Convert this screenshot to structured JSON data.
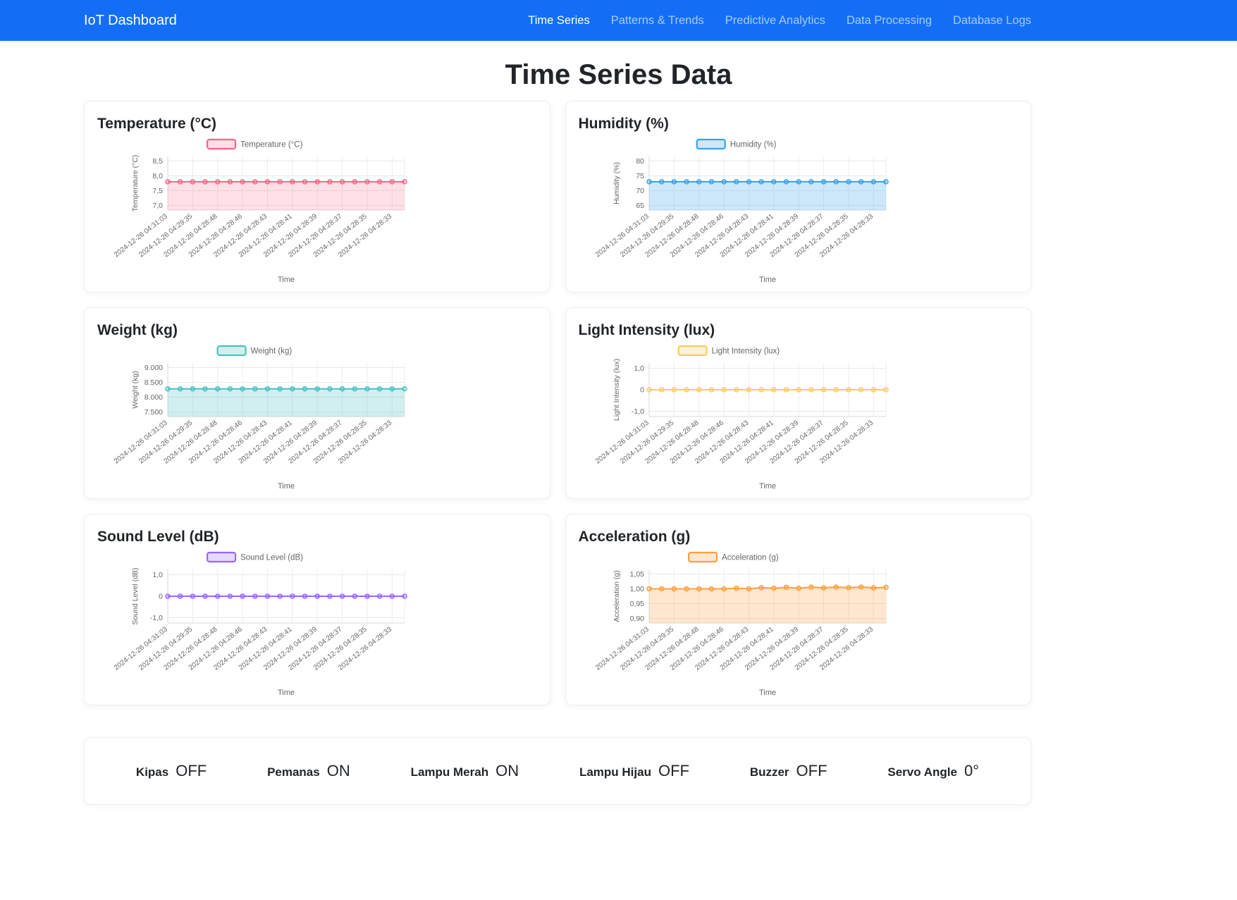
{
  "navbar": {
    "brand": "IoT Dashboard",
    "bg_color": "#146ef5",
    "links": [
      {
        "label": "Time Series",
        "active": true
      },
      {
        "label": "Patterns & Trends",
        "active": false
      },
      {
        "label": "Predictive Analytics",
        "active": false
      },
      {
        "label": "Data Processing",
        "active": false
      },
      {
        "label": "Database Logs",
        "active": false
      }
    ]
  },
  "page_title": "Time Series Data",
  "chart_data": [
    {
      "type": "line",
      "title": "Temperature (°C)",
      "legend": "Temperature (°C)",
      "ylabel": "Temperature (°C)",
      "xlabel": "Time",
      "color": "#ff6384",
      "fill_color": "rgba(255,99,132,0.2)",
      "fill": true,
      "ylim": [
        6.85,
        8.65
      ],
      "yticks": [
        {
          "v": 8.5,
          "label": "8,5"
        },
        {
          "v": 8.0,
          "label": "8,0"
        },
        {
          "v": 7.5,
          "label": "7,5"
        },
        {
          "v": 7.0,
          "label": "7,0"
        }
      ],
      "x_labels": [
        "2024-12-26 04:31:03",
        "2024-12-26 04:29:35",
        "2024-12-26 04:28:48",
        "2024-12-26 04:28:46",
        "2024-12-26 04:28:43",
        "2024-12-26 04:28:41",
        "2024-12-26 04:28:39",
        "2024-12-26 04:28:37",
        "2024-12-26 04:28:35",
        "2024-12-26 04:28:33"
      ],
      "label_every": 2,
      "values": [
        7.8,
        7.8,
        7.8,
        7.8,
        7.8,
        7.8,
        7.8,
        7.8,
        7.8,
        7.8,
        7.8,
        7.8,
        7.8,
        7.8,
        7.8,
        7.8,
        7.8,
        7.8,
        7.8,
        7.8
      ]
    },
    {
      "type": "line",
      "title": "Humidity (%)",
      "legend": "Humidity (%)",
      "ylabel": "Humidity (%)",
      "xlabel": "Time",
      "color": "#36a2eb",
      "fill_color": "rgba(54,162,235,0.25)",
      "fill": true,
      "ylim": [
        63.5,
        81.5
      ],
      "yticks": [
        {
          "v": 80,
          "label": "80"
        },
        {
          "v": 75,
          "label": "75"
        },
        {
          "v": 70,
          "label": "70"
        },
        {
          "v": 65,
          "label": "65"
        }
      ],
      "x_labels": [
        "2024-12-26 04:31:03",
        "2024-12-26 04:29:35",
        "2024-12-26 04:28:48",
        "2024-12-26 04:28:46",
        "2024-12-26 04:28:43",
        "2024-12-26 04:28:41",
        "2024-12-26 04:28:39",
        "2024-12-26 04:28:37",
        "2024-12-26 04:28:35",
        "2024-12-26 04:28:33"
      ],
      "label_every": 2,
      "values": [
        73,
        73,
        73,
        73,
        73,
        73,
        73,
        73,
        73,
        73,
        73,
        73,
        73,
        73,
        73,
        73,
        73,
        73,
        73,
        73
      ]
    },
    {
      "type": "line",
      "title": "Weight (kg)",
      "legend": "Weight (kg)",
      "ylabel": "Weight (kg)",
      "xlabel": "Time",
      "color": "#4bc0c0",
      "fill_color": "rgba(75,192,192,0.25)",
      "fill": true,
      "ylim": [
        7350,
        9150
      ],
      "yticks": [
        {
          "v": 9000,
          "label": "9.000"
        },
        {
          "v": 8500,
          "label": "8.500"
        },
        {
          "v": 8000,
          "label": "8.000"
        },
        {
          "v": 7500,
          "label": "7.500"
        }
      ],
      "x_labels": [
        "2024-12-26 04:31:03",
        "2024-12-26 04:29:35",
        "2024-12-26 04:28:48",
        "2024-12-26 04:28:46",
        "2024-12-26 04:28:43",
        "2024-12-26 04:28:41",
        "2024-12-26 04:28:39",
        "2024-12-26 04:28:37",
        "2024-12-26 04:28:35",
        "2024-12-26 04:28:33"
      ],
      "label_every": 2,
      "values": [
        8280,
        8280,
        8280,
        8280,
        8280,
        8280,
        8280,
        8280,
        8280,
        8280,
        8280,
        8280,
        8280,
        8280,
        8280,
        8280,
        8280,
        8280,
        8280,
        8280
      ]
    },
    {
      "type": "line",
      "title": "Light Intensity (lux)",
      "legend": "Light Intensity (lux)",
      "ylabel": "Light Intensity (lux)",
      "xlabel": "Time",
      "color": "#ffcd56",
      "fill_color": "rgba(255,205,86,0.25)",
      "fill": false,
      "ylim": [
        -1.25,
        1.25
      ],
      "yticks": [
        {
          "v": 1,
          "label": "1,0"
        },
        {
          "v": 0,
          "label": "0"
        },
        {
          "v": -1,
          "label": "-1,0"
        }
      ],
      "x_labels": [
        "2024-12-26 04:31:03",
        "2024-12-26 04:29:35",
        "2024-12-26 04:28:48",
        "2024-12-26 04:28:46",
        "2024-12-26 04:28:43",
        "2024-12-26 04:28:41",
        "2024-12-26 04:28:39",
        "2024-12-26 04:28:37",
        "2024-12-26 04:28:35",
        "2024-12-26 04:28:33"
      ],
      "label_every": 2,
      "values": [
        0,
        0,
        0,
        0,
        0,
        0,
        0,
        0,
        0,
        0,
        0,
        0,
        0,
        0,
        0,
        0,
        0,
        0,
        0,
        0
      ]
    },
    {
      "type": "line",
      "title": "Sound Level (dB)",
      "legend": "Sound Level (dB)",
      "ylabel": "Sound Level (dB)",
      "xlabel": "Time",
      "color": "#9966ff",
      "fill_color": "rgba(153,102,255,0.25)",
      "fill": false,
      "ylim": [
        -1.25,
        1.25
      ],
      "yticks": [
        {
          "v": 1,
          "label": "1,0"
        },
        {
          "v": 0,
          "label": "0"
        },
        {
          "v": -1,
          "label": "-1,0"
        }
      ],
      "x_labels": [
        "2024-12-26 04:31:03",
        "2024-12-26 04:29:35",
        "2024-12-26 04:28:48",
        "2024-12-26 04:28:46",
        "2024-12-26 04:28:43",
        "2024-12-26 04:28:41",
        "2024-12-26 04:28:39",
        "2024-12-26 04:28:37",
        "2024-12-26 04:28:35",
        "2024-12-26 04:28:33"
      ],
      "label_every": 2,
      "values": [
        0,
        0,
        0,
        0,
        0,
        0,
        0,
        0,
        0,
        0,
        0,
        0,
        0,
        0,
        0,
        0,
        0,
        0,
        0,
        0
      ]
    },
    {
      "type": "line",
      "title": "Acceleration (g)",
      "legend": "Acceleration (g)",
      "ylabel": "Acceleration (g)",
      "xlabel": "Time",
      "color": "#ff9f40",
      "fill_color": "rgba(255,159,64,0.25)",
      "fill": true,
      "ylim": [
        0.885,
        1.065
      ],
      "yticks": [
        {
          "v": 1.05,
          "label": "1,05"
        },
        {
          "v": 1.0,
          "label": "1,00"
        },
        {
          "v": 0.95,
          "label": "0,95"
        },
        {
          "v": 0.9,
          "label": "0,90"
        }
      ],
      "x_labels": [
        "2024-12-26 04:31:03",
        "2024-12-26 04:29:35",
        "2024-12-26 04:28:48",
        "2024-12-26 04:28:46",
        "2024-12-26 04:28:43",
        "2024-12-26 04:28:41",
        "2024-12-26 04:28:39",
        "2024-12-26 04:28:37",
        "2024-12-26 04:28:35",
        "2024-12-26 04:28:33"
      ],
      "label_every": 2,
      "values": [
        1,
        1,
        1,
        1,
        1,
        1,
        1,
        1.002,
        1,
        1.004,
        1.002,
        1.005,
        1.002,
        1.006,
        1.003,
        1.006,
        1.004,
        1.006,
        1.003,
        1.005
      ]
    }
  ],
  "status": {
    "items": [
      {
        "label": "Kipas",
        "value": "OFF"
      },
      {
        "label": "Pemanas",
        "value": "ON"
      },
      {
        "label": "Lampu Merah",
        "value": "ON"
      },
      {
        "label": "Lampu Hijau",
        "value": "OFF"
      },
      {
        "label": "Buzzer",
        "value": "OFF"
      },
      {
        "label": "Servo Angle",
        "value": "0°"
      }
    ]
  }
}
